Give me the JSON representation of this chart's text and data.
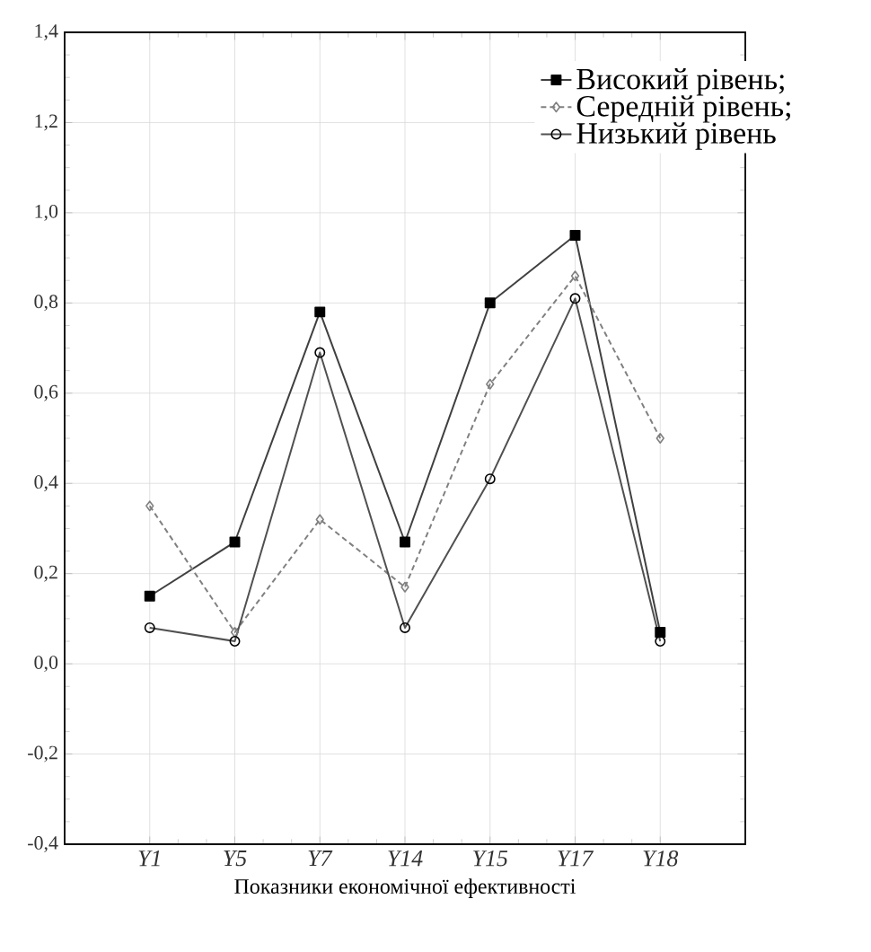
{
  "chart_data": {
    "type": "line",
    "xlabel": "Показники економічної ефективності",
    "categories": [
      "*Y1*",
      "*Y5*",
      "*Y7*",
      "*Y14*",
      "*Y15*",
      "*Y17*",
      "*Y18*"
    ],
    "series": [
      {
        "name": "Високий рівень;",
        "color": "#404040",
        "marker": "square",
        "line_style": "solid",
        "values": [
          0.15,
          0.27,
          0.78,
          0.27,
          0.8,
          0.95,
          0.07
        ]
      },
      {
        "name": "Середній рівень;",
        "color": "#808080",
        "marker": "diamond",
        "line_style": "dashed",
        "values": [
          0.35,
          0.07,
          0.32,
          0.17,
          0.62,
          0.86,
          0.5
        ]
      },
      {
        "name": "Низький рівень",
        "color": "#505050",
        "marker": "circle",
        "line_style": "solid",
        "values": [
          0.08,
          0.05,
          0.69,
          0.08,
          0.41,
          0.81,
          0.05
        ]
      }
    ],
    "ylim": [
      -0.4,
      1.4
    ],
    "yticks": [
      {
        "value": -0.4,
        "label": "-0,4"
      },
      {
        "value": -0.2,
        "label": "-0,2"
      },
      {
        "value": 0,
        "label": "0,0"
      },
      {
        "value": 0.2,
        "label": "0,2"
      },
      {
        "value": 0.4,
        "label": "0,4"
      },
      {
        "value": 0.6,
        "label": "0,6"
      },
      {
        "value": 0.8,
        "label": "0,8"
      },
      {
        "value": 1.0,
        "label": "1,0"
      },
      {
        "value": 1.2,
        "label": "1,2"
      },
      {
        "value": 1.4,
        "label": "1,4"
      }
    ],
    "grid": true,
    "legend": "top right"
  }
}
